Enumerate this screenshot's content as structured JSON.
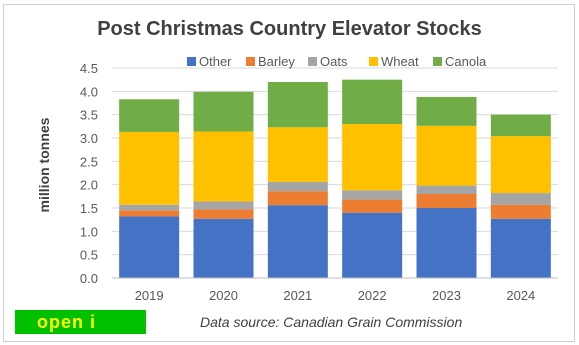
{
  "chart_data": {
    "type": "bar",
    "stacked": true,
    "title": "Post Christmas Country Elevator Stocks",
    "ylabel": "million tonnes",
    "xlabel": "",
    "ylim": [
      0,
      4.5
    ],
    "yticks": [
      "0.0",
      "0.5",
      "1.0",
      "1.5",
      "2.0",
      "2.5",
      "3.0",
      "3.5",
      "4.0",
      "4.5"
    ],
    "categories": [
      "2019",
      "2020",
      "2021",
      "2022",
      "2023",
      "2024"
    ],
    "legend_position": "top",
    "series": [
      {
        "name": "Other",
        "color": "#4472c4",
        "values": [
          1.32,
          1.27,
          1.56,
          1.4,
          1.5,
          1.27
        ]
      },
      {
        "name": "Barley",
        "color": "#ed7d31",
        "values": [
          0.13,
          0.2,
          0.3,
          0.28,
          0.3,
          0.3
        ]
      },
      {
        "name": "Oats",
        "color": "#a5a5a5",
        "values": [
          0.12,
          0.17,
          0.2,
          0.2,
          0.18,
          0.25
        ]
      },
      {
        "name": "Wheat",
        "color": "#ffc000",
        "values": [
          1.56,
          1.5,
          1.17,
          1.42,
          1.28,
          1.22
        ]
      },
      {
        "name": "Canola",
        "color": "#70ad47",
        "values": [
          0.7,
          0.85,
          0.97,
          0.95,
          0.62,
          0.46
        ]
      }
    ],
    "grid": true
  },
  "source_note": "Data source:  Canadian Grain Commission",
  "logo_text": "open i"
}
